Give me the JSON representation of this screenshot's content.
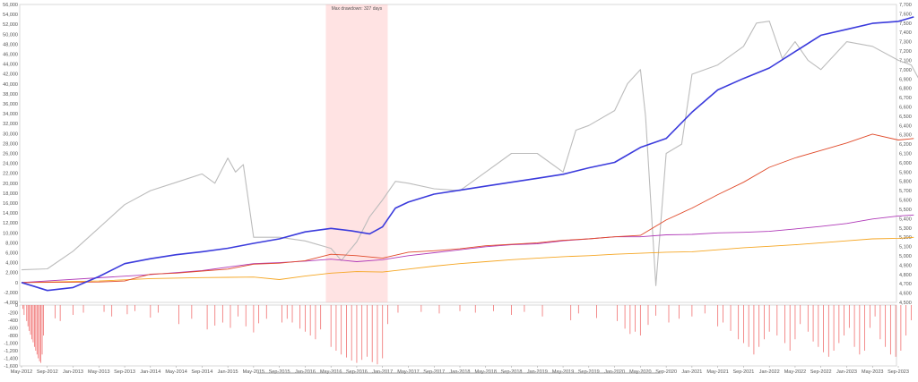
{
  "chart_data": {
    "type": "line",
    "annotation": "Max drawdown: 327 days",
    "left_axis": {
      "ylim": [
        -4000,
        56000
      ],
      "ticks": [
        "56,000",
        "54,000",
        "52,000",
        "50,000",
        "48,000",
        "46,000",
        "44,000",
        "42,000",
        "40,000",
        "38,000",
        "36,000",
        "34,000",
        "32,000",
        "30,000",
        "28,000",
        "26,000",
        "24,000",
        "22,000",
        "20,000",
        "18,000",
        "16,000",
        "14,000",
        "12,000",
        "10,000",
        "8,000",
        "6,000",
        "4,000",
        "2,000",
        "0",
        "-2,000",
        "-4,000"
      ]
    },
    "right_axis": {
      "ylim": [
        4500,
        7700
      ],
      "ticks": [
        "7,700",
        "7,600",
        "7,500",
        "7,400",
        "7,300",
        "7,200",
        "7,100",
        "7,000",
        "6,900",
        "6,800",
        "6,700",
        "6,600",
        "6,500",
        "6,400",
        "6,300",
        "6,200",
        "6,100",
        "6,000",
        "5,900",
        "5,800",
        "5,700",
        "5,600",
        "5,500",
        "5,400",
        "5,300",
        "5,200",
        "5,100",
        "5,000",
        "4,900",
        "4,800",
        "4,700",
        "4,600",
        "4,500"
      ]
    },
    "drawdown_axis": {
      "ylim": [
        -1600,
        0
      ],
      "ticks": [
        "0",
        "-200",
        "-400",
        "-600",
        "-800",
        "-1,000",
        "-1,200",
        "-1,400",
        "-1,600"
      ]
    },
    "x_ticks": [
      "May-2012",
      "Sep-2012",
      "Jan-2013",
      "May-2013",
      "Sep-2013",
      "Jan-2014",
      "May-2014",
      "Sep-2014",
      "Jan-2015",
      "May-2015",
      "Sep-2015",
      "Jan-2016",
      "May-2016",
      "Sep-2016",
      "Jan-2017",
      "May-2017",
      "Sep-2017",
      "Jan-2018",
      "May-2018",
      "Sep-2018",
      "Jan-2019",
      "May-2019",
      "Sep-2019",
      "Jan-2020",
      "May-2020",
      "Sep-2020",
      "Jan-2021",
      "May-2021",
      "Sep-2021",
      "Jan-2022",
      "May-2022",
      "Sep-2022",
      "Jan-2023",
      "May-2023",
      "Sep-2023"
    ],
    "highlight": {
      "start_index": 11.8,
      "end_index": 14.2
    },
    "series": [
      {
        "color": "#3b3bdc",
        "axis": "left",
        "points": [
          [
            0,
            0
          ],
          [
            0.5,
            -800
          ],
          [
            1,
            -1600
          ],
          [
            2,
            -1000
          ],
          [
            3,
            1200
          ],
          [
            4,
            3800
          ],
          [
            5,
            4800
          ],
          [
            6,
            5600
          ],
          [
            7,
            6200
          ],
          [
            8,
            6900
          ],
          [
            9,
            7900
          ],
          [
            10,
            8800
          ],
          [
            11,
            10200
          ],
          [
            12,
            10900
          ],
          [
            12.8,
            10400
          ],
          [
            13.5,
            9800
          ],
          [
            14,
            11200
          ],
          [
            14.5,
            15000
          ],
          [
            15,
            16200
          ],
          [
            16,
            17800
          ],
          [
            17,
            18600
          ],
          [
            18,
            19400
          ],
          [
            19,
            20200
          ],
          [
            20,
            21000
          ],
          [
            21,
            21800
          ],
          [
            22,
            23100
          ],
          [
            23,
            24200
          ],
          [
            24,
            27200
          ],
          [
            25,
            29000
          ],
          [
            26,
            34300
          ],
          [
            27,
            38800
          ],
          [
            28,
            41100
          ],
          [
            29,
            43200
          ],
          [
            30,
            46500
          ],
          [
            31,
            49800
          ],
          [
            32,
            51000
          ],
          [
            33,
            52200
          ],
          [
            34,
            52600
          ],
          [
            34.6,
            53500
          ]
        ]
      },
      {
        "color": "#bcbcbc",
        "axis": "right",
        "points": [
          [
            0,
            4850
          ],
          [
            1,
            4860
          ],
          [
            2,
            5050
          ],
          [
            3,
            5300
          ],
          [
            4,
            5550
          ],
          [
            5,
            5700
          ],
          [
            6,
            5790
          ],
          [
            7,
            5880
          ],
          [
            7.5,
            5780
          ],
          [
            8,
            6050
          ],
          [
            8.3,
            5900
          ],
          [
            8.6,
            5980
          ],
          [
            9,
            5200
          ],
          [
            10,
            5200
          ],
          [
            11,
            5160
          ],
          [
            12,
            5080
          ],
          [
            12.4,
            4950
          ],
          [
            13,
            5150
          ],
          [
            13.5,
            5420
          ],
          [
            14,
            5600
          ],
          [
            14.5,
            5800
          ],
          [
            15,
            5780
          ],
          [
            16,
            5720
          ],
          [
            17,
            5700
          ],
          [
            18,
            5900
          ],
          [
            19,
            6100
          ],
          [
            20,
            6100
          ],
          [
            21,
            5900
          ],
          [
            21.5,
            6350
          ],
          [
            22,
            6400
          ],
          [
            23,
            6560
          ],
          [
            23.5,
            6850
          ],
          [
            24,
            7000
          ],
          [
            24.2,
            6500
          ],
          [
            24.6,
            4680
          ],
          [
            25,
            6100
          ],
          [
            25.6,
            6200
          ],
          [
            26,
            6950
          ],
          [
            27,
            7050
          ],
          [
            28,
            7250
          ],
          [
            28.5,
            7500
          ],
          [
            29,
            7520
          ],
          [
            29.5,
            7120
          ],
          [
            30,
            7300
          ],
          [
            30.5,
            7100
          ],
          [
            31,
            7000
          ],
          [
            32,
            7300
          ],
          [
            33,
            7250
          ],
          [
            34,
            7100
          ],
          [
            34.5,
            7050
          ],
          [
            34.8,
            6900
          ]
        ]
      },
      {
        "color": "#e04a2a",
        "axis": "left",
        "points": [
          [
            0,
            0
          ],
          [
            3,
            100
          ],
          [
            4,
            300
          ],
          [
            5,
            1700
          ],
          [
            6,
            1900
          ],
          [
            7,
            2300
          ],
          [
            8,
            2700
          ],
          [
            9,
            3700
          ],
          [
            10,
            3900
          ],
          [
            11,
            4400
          ],
          [
            12,
            5700
          ],
          [
            13,
            5400
          ],
          [
            14,
            4900
          ],
          [
            15,
            6100
          ],
          [
            16,
            6400
          ],
          [
            17,
            6800
          ],
          [
            18,
            7400
          ],
          [
            19,
            7700
          ],
          [
            20,
            8000
          ],
          [
            21,
            8500
          ],
          [
            22,
            8800
          ],
          [
            23,
            9200
          ],
          [
            24,
            9500
          ],
          [
            25,
            12600
          ],
          [
            26,
            15000
          ],
          [
            27,
            17700
          ],
          [
            28,
            20200
          ],
          [
            29,
            23200
          ],
          [
            30,
            25100
          ],
          [
            31,
            26600
          ],
          [
            32,
            28100
          ],
          [
            33,
            29900
          ],
          [
            34,
            28700
          ],
          [
            34.6,
            29000
          ]
        ]
      },
      {
        "color": "#b03ab8",
        "axis": "left",
        "points": [
          [
            0,
            0
          ],
          [
            5,
            1600
          ],
          [
            6,
            2000
          ],
          [
            7,
            2400
          ],
          [
            8,
            3100
          ],
          [
            9,
            3800
          ],
          [
            10,
            4000
          ],
          [
            11,
            4300
          ],
          [
            12,
            4700
          ],
          [
            13,
            4200
          ],
          [
            14,
            4600
          ],
          [
            15,
            5400
          ],
          [
            16,
            6000
          ],
          [
            17,
            6600
          ],
          [
            18,
            7200
          ],
          [
            19,
            7600
          ],
          [
            20,
            7800
          ],
          [
            21,
            8400
          ],
          [
            22,
            8800
          ],
          [
            23,
            9200
          ],
          [
            24,
            9200
          ],
          [
            25,
            9600
          ],
          [
            26,
            9700
          ],
          [
            27,
            10000
          ],
          [
            28,
            10100
          ],
          [
            29,
            10300
          ],
          [
            30,
            10800
          ],
          [
            31,
            11300
          ],
          [
            32,
            11900
          ],
          [
            33,
            12800
          ],
          [
            34,
            13400
          ],
          [
            34.6,
            13600
          ]
        ]
      },
      {
        "color": "#f5a623",
        "axis": "left",
        "points": [
          [
            0,
            0
          ],
          [
            3,
            300
          ],
          [
            5,
            800
          ],
          [
            7,
            1000
          ],
          [
            9,
            1100
          ],
          [
            10,
            600
          ],
          [
            11,
            1300
          ],
          [
            12,
            1900
          ],
          [
            13,
            2200
          ],
          [
            14,
            2100
          ],
          [
            15,
            2700
          ],
          [
            16,
            3300
          ],
          [
            17,
            3800
          ],
          [
            18,
            4200
          ],
          [
            19,
            4600
          ],
          [
            20,
            4900
          ],
          [
            21,
            5200
          ],
          [
            22,
            5400
          ],
          [
            23,
            5700
          ],
          [
            24,
            5900
          ],
          [
            25,
            6100
          ],
          [
            26,
            6200
          ],
          [
            27,
            6600
          ],
          [
            28,
            7000
          ],
          [
            29,
            7300
          ],
          [
            30,
            7600
          ],
          [
            31,
            8000
          ],
          [
            32,
            8400
          ],
          [
            33,
            8800
          ],
          [
            34,
            8900
          ],
          [
            34.6,
            9100
          ]
        ]
      }
    ],
    "drawdown_bars": {
      "color": "#f07070",
      "points": [
        [
          0.05,
          -100
        ],
        [
          0.1,
          -260
        ],
        [
          0.2,
          -420
        ],
        [
          0.25,
          -560
        ],
        [
          0.3,
          -680
        ],
        [
          0.35,
          -780
        ],
        [
          0.4,
          -900
        ],
        [
          0.45,
          -980
        ],
        [
          0.5,
          -1100
        ],
        [
          0.55,
          -1200
        ],
        [
          0.6,
          -1300
        ],
        [
          0.65,
          -1400
        ],
        [
          0.7,
          -1480
        ],
        [
          0.75,
          -1520
        ],
        [
          0.8,
          -1300
        ],
        [
          0.85,
          -800
        ],
        [
          1.3,
          -350
        ],
        [
          1.5,
          -420
        ],
        [
          2.0,
          -260
        ],
        [
          2.4,
          -200
        ],
        [
          3.2,
          -180
        ],
        [
          3.5,
          -300
        ],
        [
          4.1,
          -240
        ],
        [
          4.4,
          -160
        ],
        [
          5.0,
          -330
        ],
        [
          5.3,
          -200
        ],
        [
          6.1,
          -500
        ],
        [
          6.6,
          -360
        ],
        [
          7.2,
          -640
        ],
        [
          7.5,
          -540
        ],
        [
          7.8,
          -460
        ],
        [
          8.1,
          -600
        ],
        [
          8.4,
          -300
        ],
        [
          8.7,
          -560
        ],
        [
          9.0,
          -720
        ],
        [
          9.2,
          -480
        ],
        [
          9.5,
          -360
        ],
        [
          10.1,
          -460
        ],
        [
          10.3,
          -360
        ],
        [
          10.5,
          -460
        ],
        [
          10.8,
          -620
        ],
        [
          11.0,
          -700
        ],
        [
          11.2,
          -800
        ],
        [
          11.4,
          -900
        ],
        [
          11.6,
          -640
        ],
        [
          12.0,
          -1100
        ],
        [
          12.2,
          -1200
        ],
        [
          12.4,
          -1300
        ],
        [
          12.6,
          -1380
        ],
        [
          12.8,
          -1460
        ],
        [
          13.0,
          -1520
        ],
        [
          13.2,
          -1440
        ],
        [
          13.4,
          -1360
        ],
        [
          13.6,
          -1500
        ],
        [
          13.8,
          -1560
        ],
        [
          14.0,
          -1400
        ],
        [
          14.2,
          -500
        ],
        [
          14.6,
          -200
        ],
        [
          15.5,
          -180
        ],
        [
          16.2,
          -220
        ],
        [
          17.0,
          -160
        ],
        [
          17.6,
          -200
        ],
        [
          18.3,
          -160
        ],
        [
          19.0,
          -260
        ],
        [
          19.5,
          -180
        ],
        [
          20.2,
          -300
        ],
        [
          21.3,
          -400
        ],
        [
          21.6,
          -220
        ],
        [
          22.3,
          -340
        ],
        [
          23.1,
          -420
        ],
        [
          23.4,
          -620
        ],
        [
          23.6,
          -760
        ],
        [
          23.8,
          -700
        ],
        [
          24.0,
          -800
        ],
        [
          24.3,
          -520
        ],
        [
          24.6,
          -280
        ],
        [
          25.1,
          -460
        ],
        [
          25.5,
          -360
        ],
        [
          26.0,
          -300
        ],
        [
          26.5,
          -220
        ],
        [
          27.0,
          -560
        ],
        [
          27.2,
          -460
        ],
        [
          27.5,
          -680
        ],
        [
          27.8,
          -900
        ],
        [
          28.0,
          -1000
        ],
        [
          28.2,
          -1100
        ],
        [
          28.4,
          -1300
        ],
        [
          28.6,
          -1100
        ],
        [
          28.8,
          -900
        ],
        [
          29.0,
          -700
        ],
        [
          29.3,
          -800
        ],
        [
          29.6,
          -1000
        ],
        [
          29.8,
          -1200
        ],
        [
          30.0,
          -900
        ],
        [
          30.2,
          -500
        ],
        [
          30.5,
          -700
        ],
        [
          30.7,
          -960
        ],
        [
          30.9,
          -1100
        ],
        [
          31.1,
          -1240
        ],
        [
          31.3,
          -1360
        ],
        [
          31.5,
          -1200
        ],
        [
          31.7,
          -1000
        ],
        [
          31.9,
          -800
        ],
        [
          32.1,
          -600
        ],
        [
          32.3,
          -1100
        ],
        [
          32.5,
          -1300
        ],
        [
          32.7,
          -1200
        ],
        [
          32.9,
          -600
        ],
        [
          33.1,
          -300
        ],
        [
          33.3,
          -900
        ],
        [
          33.5,
          -1100
        ],
        [
          33.7,
          -1300
        ],
        [
          33.9,
          -1360
        ],
        [
          34.1,
          -1200
        ],
        [
          34.3,
          -800
        ],
        [
          34.5,
          -400
        ]
      ]
    }
  }
}
